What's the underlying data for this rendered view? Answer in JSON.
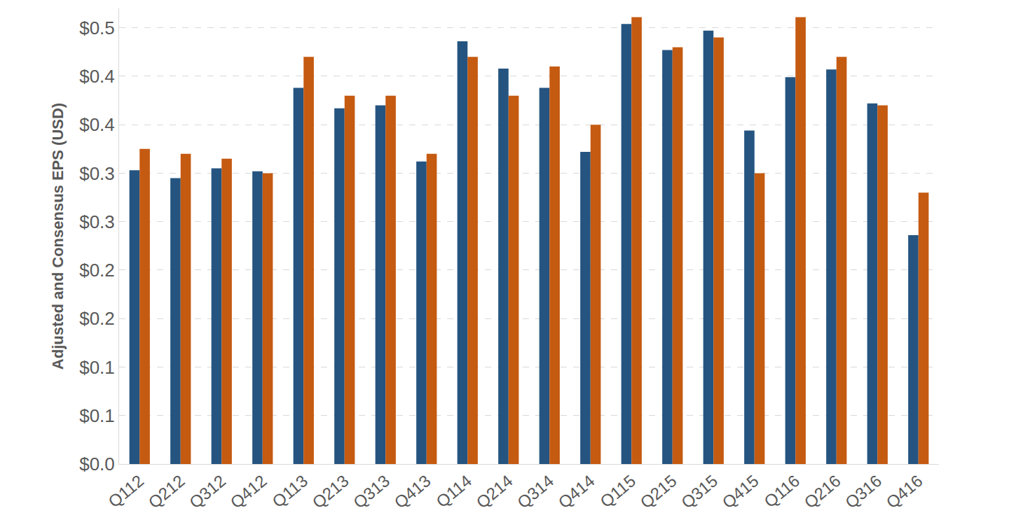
{
  "chart_data": {
    "type": "bar",
    "y_label": "Adjusted and Consensus EPS (USD)",
    "categories": [
      "Q112",
      "Q212",
      "Q312",
      "Q412",
      "Q113",
      "Q213",
      "Q313",
      "Q413",
      "Q114",
      "Q214",
      "Q314",
      "Q414",
      "Q115",
      "Q215",
      "Q315",
      "Q415",
      "Q116",
      "Q216",
      "Q316",
      "Q416"
    ],
    "series": [
      {
        "color": "#255480",
        "values": [
          0.303,
          0.295,
          0.305,
          0.302,
          0.388,
          0.367,
          0.37,
          0.312,
          0.436,
          0.408,
          0.388,
          0.322,
          0.454,
          0.427,
          0.447,
          0.344,
          0.399,
          0.407,
          0.372,
          0.236
        ]
      },
      {
        "color": "#c55a11",
        "values": [
          0.325,
          0.32,
          0.315,
          0.3,
          0.42,
          0.38,
          0.38,
          0.32,
          0.42,
          0.38,
          0.41,
          0.35,
          0.461,
          0.43,
          0.44,
          0.3,
          0.461,
          0.42,
          0.37,
          0.28
        ]
      }
    ],
    "ylim": [
      0,
      0.47
    ],
    "yticks": [
      {
        "value": 0,
        "label": "$0.0"
      },
      {
        "value": 0.05,
        "label": "$0.1"
      },
      {
        "value": 0.1,
        "label": "$0.1"
      },
      {
        "value": 0.15,
        "label": "$0.2"
      },
      {
        "value": 0.2,
        "label": "$0.2"
      },
      {
        "value": 0.25,
        "label": "$0.3"
      },
      {
        "value": 0.3,
        "label": "$0.3"
      },
      {
        "value": 0.35,
        "label": "$0.4"
      },
      {
        "value": 0.4,
        "label": "$0.4"
      },
      {
        "value": 0.45,
        "label": "$0.5"
      }
    ],
    "grid": true
  }
}
